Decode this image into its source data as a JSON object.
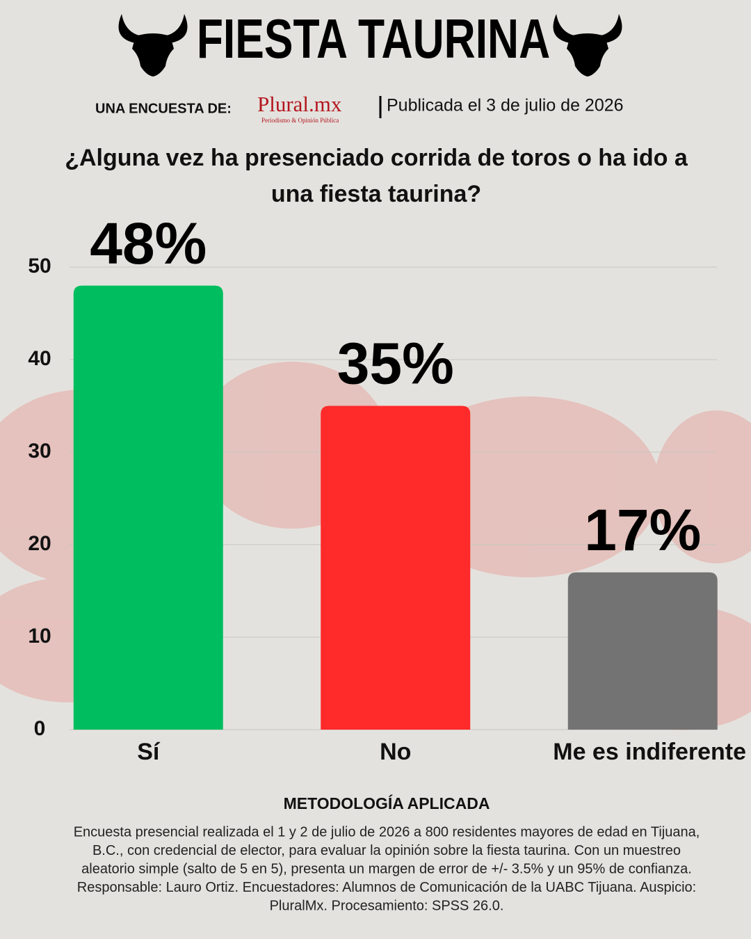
{
  "chart_data": {
    "type": "bar",
    "title": "FIESTA TAURINA",
    "byline_label": "UNA ENCUESTA DE:",
    "brand": "Plural.mx",
    "brand_tagline": "Periodismo & Opinión Pública",
    "published": "Publicada el 3 de julio de 2026",
    "question_lines": [
      "¿Alguna vez ha presenciado corrida de toros o ha ido a",
      "una fiesta taurina?"
    ],
    "categories": [
      "Sí",
      "No",
      "Me es indiferente"
    ],
    "values": [
      48,
      35,
      17
    ],
    "value_labels": [
      "48%",
      "35%",
      "17%"
    ],
    "colors": [
      "#00be5f",
      "#ff2a2a",
      "#737373"
    ],
    "ylim": [
      0,
      50
    ],
    "yticks": [
      0,
      10,
      20,
      30,
      40,
      50
    ],
    "grid": true,
    "methodology_title": "METODOLOGÍA APLICADA",
    "methodology_lines": [
      "Encuesta presencial realizada el 1 y 2 de julio de 2026 a 800 residentes mayores de edad en Tijuana,",
      "B.C., con credencial de elector, para evaluar la opinión sobre la fiesta taurina. Con un muestreo",
      "aleatorio simple (salto de 5 en 5), presenta un margen de error de +/- 3.5% y un 95% de confianza.",
      "Responsable: Lauro Ortiz. Encuestadores: Alumnos de Comunicación de la UABC Tijuana. Auspicio:",
      "PluralMx. Procesamiento: SPSS 26.0."
    ]
  }
}
